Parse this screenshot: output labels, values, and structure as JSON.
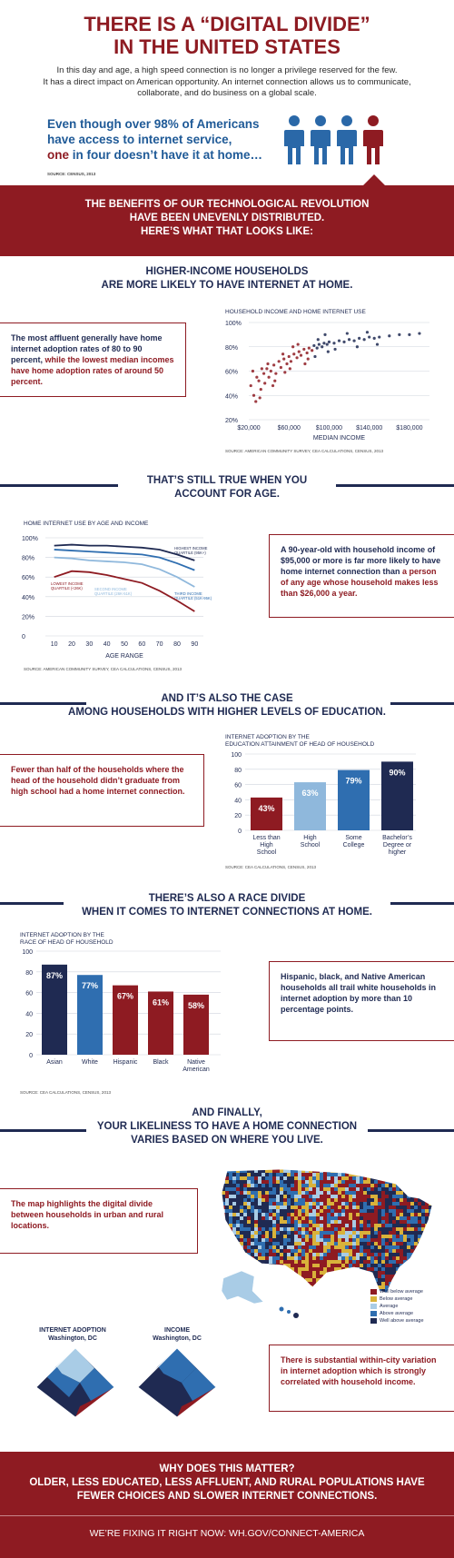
{
  "header": {
    "title_line1": "THERE IS A “DIGITAL DIVIDE”",
    "title_line2": "IN THE UNITED STATES",
    "intro_line1": "In this day and age, a high speed connection is no longer a privilege reserved for the few.",
    "intro_line2": "It has a direct impact on American opportunity. An internet connection allows us to communicate,",
    "intro_line3": "collaborate, and do business on a global scale.",
    "lead_line1": "Even though over 98% of Americans",
    "lead_line2": "have access to internet service,",
    "lead_line3a": "one",
    "lead_line3b": " in four doesn’t have it at home…",
    "source": "SOURCE: CENSUS, 2013",
    "person_colors": [
      "#2a68a8",
      "#2a68a8",
      "#2a68a8",
      "#8e1b22"
    ]
  },
  "banner": {
    "line1": "THE BENEFITS OF OUR TECHNOLOGICAL REVOLUTION",
    "line2": "HAVE BEEN UNEVENLY DISTRIBUTED.",
    "line3": "HERE’S WHAT THAT LOOKS LIKE:"
  },
  "income_section": {
    "heading_pre": "HIGHER-",
    "heading_bold": "INCOME",
    "heading_post": " HOUSEHOLDS",
    "heading_line2": "ARE MORE LIKELY TO HAVE INTERNET AT HOME.",
    "callout_a": "The most affluent generally have home internet adoption rates of 80 to 90 percent,",
    "callout_b": " while the lowest median incomes have home adoption rates of around 50 percent.",
    "chart_title": "HOUSEHOLD INCOME AND HOME INTERNET USE",
    "xlabel": "MEDIAN INCOME",
    "source": "SOURCE: AMERICAN COMMUNITY SURVEY, CEA CALCULATIONS, CENSUS, 2013"
  },
  "age_section": {
    "heading_line1": "THAT’S STILL TRUE WHEN YOU",
    "heading_pre": "ACCOUNT FOR ",
    "heading_bold": "AGE",
    "heading_post": ".",
    "chart_title": "HOME INTERNET USE BY AGE AND INCOME",
    "xlabel": "AGE RANGE",
    "callout_a": "A 90-year-old with household income of $95,000 or more is far more likely to have home internet connection than ",
    "callout_b": "a person of any age whose household makes less than $26,000 a year.",
    "source": "SOURCE: AMERICAN COMMUNITY SURVEY, CEA CALCULATIONS, CENSUS, 2013"
  },
  "education_section": {
    "heading_line1": "AND IT’S ALSO THE CASE",
    "heading_pre": "AMONG HOUSEHOLDS WITH HIGHER LEVELS OF ",
    "heading_bold": "EDUCATION",
    "heading_post": ".",
    "callout": "Fewer than half of the households where the head of the household didn’t graduate from high school had a home internet connection.",
    "chart_title_line1": "INTERNET ADOPTION BY THE",
    "chart_title_line2": "EDUCATION ATTAINMENT OF HEAD OF HOUSEHOLD",
    "source": "SOURCE: CEA CALCULATIONS, CENSUS, 2013"
  },
  "race_section": {
    "heading_pre": "THERE’S ALSO A ",
    "heading_bold": "RACE",
    "heading_post": " DIVIDE",
    "heading_line2": "WHEN IT COMES TO INTERNET CONNECTIONS AT HOME.",
    "chart_title_line1": "INTERNET ADOPTION BY THE",
    "chart_title_line2": "RACE OF HEAD OF HOUSEHOLD",
    "callout": "Hispanic, black, and Native American households all trail white households in internet adoption by more than 10 percentage points.",
    "source": "SOURCE: CEA CALCULATIONS, CENSUS, 2013"
  },
  "location_section": {
    "heading_line1": "AND FINALLY,",
    "heading_line2": "YOUR LIKELINESS TO HAVE A HOME CONNECTION",
    "heading_pre": "VARIES BASED ON ",
    "heading_bold": "WHERE YOU LIVE",
    "heading_post": ".",
    "callout_map": "The map highlights the digital divide between households in urban and rural locations.",
    "legend": [
      {
        "label": "Well below average",
        "color": "#8e1b22"
      },
      {
        "label": "Below average",
        "color": "#d9b23a"
      },
      {
        "label": "Average",
        "color": "#a9cce6"
      },
      {
        "label": "Above average",
        "color": "#2f6eb0"
      },
      {
        "label": "Well above average",
        "color": "#1f2a52"
      }
    ],
    "dc_map1_title": "INTERNET ADOPTION",
    "dc_map1_sub": "Washington, DC",
    "dc_map2_title": "INCOME",
    "dc_map2_sub": "Washington, DC",
    "callout_dc": "There is substantial within-city variation in internet adoption which is strongly correlated with household income."
  },
  "footer": {
    "line1": "WHY DOES THIS MATTER?",
    "line2": "OLDER, LESS EDUCATED, LESS AFFLUENT, AND RURAL POPULATIONS HAVE",
    "line3": "FEWER CHOICES AND SLOWER INTERNET CONNECTIONS.",
    "cta": "WE’RE FIXING IT RIGHT NOW: WH.GOV/CONNECT-AMERICA"
  },
  "chart_data": [
    {
      "type": "scatter",
      "title": "HOUSEHOLD INCOME AND HOME INTERNET USE",
      "xlabel": "MEDIAN INCOME",
      "ylabel": "",
      "x_ticks": [
        "$20,000",
        "$60,000",
        "$100,000",
        "$140,000",
        "$180,000"
      ],
      "y_ticks": [
        "20%",
        "40%",
        "60%",
        "80%",
        "100%"
      ],
      "xlim": [
        20000,
        200000
      ],
      "ylim": [
        20,
        100
      ],
      "points": [
        [
          22000,
          48
        ],
        [
          25000,
          40
        ],
        [
          28000,
          55
        ],
        [
          30000,
          52
        ],
        [
          32000,
          45
        ],
        [
          35000,
          58
        ],
        [
          36000,
          50
        ],
        [
          38000,
          62
        ],
        [
          40000,
          55
        ],
        [
          42000,
          60
        ],
        [
          45000,
          65
        ],
        [
          47000,
          58
        ],
        [
          50000,
          68
        ],
        [
          52000,
          63
        ],
        [
          55000,
          70
        ],
        [
          58000,
          66
        ],
        [
          60000,
          72
        ],
        [
          62000,
          68
        ],
        [
          65000,
          74
        ],
        [
          68000,
          71
        ],
        [
          70000,
          76
        ],
        [
          72000,
          73
        ],
        [
          75000,
          78
        ],
        [
          78000,
          75
        ],
        [
          80000,
          79
        ],
        [
          83000,
          77
        ],
        [
          85000,
          81
        ],
        [
          88000,
          79
        ],
        [
          90000,
          82
        ],
        [
          93000,
          80
        ],
        [
          95000,
          83
        ],
        [
          98000,
          82
        ],
        [
          100000,
          84
        ],
        [
          105000,
          83
        ],
        [
          110000,
          85
        ],
        [
          115000,
          84
        ],
        [
          120000,
          86
        ],
        [
          125000,
          85
        ],
        [
          130000,
          87
        ],
        [
          135000,
          86
        ],
        [
          140000,
          88
        ],
        [
          145000,
          87
        ],
        [
          150000,
          88
        ],
        [
          160000,
          89
        ],
        [
          170000,
          90
        ],
        [
          180000,
          90
        ],
        [
          190000,
          91
        ],
        [
          27000,
          35
        ],
        [
          33000,
          62
        ],
        [
          44000,
          48
        ],
        [
          56000,
          59
        ],
        [
          64000,
          80
        ],
        [
          76000,
          66
        ],
        [
          86000,
          72
        ],
        [
          96000,
          90
        ],
        [
          106000,
          78
        ],
        [
          118000,
          91
        ],
        [
          128000,
          80
        ],
        [
          138000,
          92
        ],
        [
          148000,
          82
        ],
        [
          24000,
          60
        ],
        [
          31000,
          38
        ],
        [
          39000,
          66
        ],
        [
          46000,
          52
        ],
        [
          54000,
          74
        ],
        [
          61000,
          62
        ],
        [
          69000,
          82
        ],
        [
          79000,
          70
        ],
        [
          89000,
          86
        ],
        [
          99000,
          76
        ]
      ],
      "colors": [
        "#8e1b22",
        "#1f2a52"
      ]
    },
    {
      "type": "line",
      "title": "HOME INTERNET USE BY AGE AND INCOME",
      "xlabel": "AGE RANGE",
      "x": [
        10,
        20,
        30,
        40,
        50,
        60,
        70,
        80,
        90
      ],
      "y_ticks": [
        "0",
        "20%",
        "40%",
        "60%",
        "80%",
        "100%"
      ],
      "x_ticks": [
        "10",
        "20",
        "30",
        "40",
        "50",
        "60",
        "70",
        "80",
        "90"
      ],
      "ylim": [
        0,
        100
      ],
      "series": [
        {
          "name": "HIGHEST INCOME QUARTILE (95K+)",
          "color": "#1f2a52",
          "values": [
            92,
            93,
            92,
            92,
            91,
            90,
            88,
            83,
            77
          ]
        },
        {
          "name": "THIRD INCOME QUARTILE (51K-95K)",
          "color": "#2f6eb0",
          "values": [
            88,
            87,
            86,
            85,
            84,
            83,
            80,
            74,
            67
          ]
        },
        {
          "name": "SECOND INCOME QUARTILE (26K-51K)",
          "color": "#8fb8dc",
          "values": [
            80,
            79,
            77,
            76,
            75,
            73,
            68,
            60,
            50
          ]
        },
        {
          "name": "LOWEST INCOME QUARTILE (<26K)",
          "color": "#8e1b22",
          "values": [
            60,
            66,
            65,
            62,
            58,
            54,
            46,
            36,
            25
          ]
        }
      ]
    },
    {
      "type": "bar",
      "title": "INTERNET ADOPTION BY THE EDUCATION ATTAINMENT OF HEAD OF HOUSEHOLD",
      "categories": [
        "Less than High School",
        "High School",
        "Some College",
        "Bachelor’s Degree or higher"
      ],
      "values": [
        43,
        63,
        79,
        90
      ],
      "labels": [
        "43%",
        "63%",
        "79%",
        "90%"
      ],
      "colors": [
        "#8e1b22",
        "#8fb8dc",
        "#2f6eb0",
        "#1f2a52"
      ],
      "y_ticks": [
        "0",
        "20",
        "40",
        "60",
        "80",
        "100"
      ],
      "ylim": [
        0,
        100
      ]
    },
    {
      "type": "bar",
      "title": "INTERNET ADOPTION BY THE RACE OF HEAD OF HOUSEHOLD",
      "categories": [
        "Asian",
        "White",
        "Hispanic",
        "Black",
        "Native American"
      ],
      "values": [
        87,
        77,
        67,
        61,
        58
      ],
      "labels": [
        "87%",
        "77%",
        "67%",
        "61%",
        "58%"
      ],
      "colors": [
        "#1f2a52",
        "#2f6eb0",
        "#8e1b22",
        "#8e1b22",
        "#8e1b22"
      ],
      "y_ticks": [
        "0",
        "20",
        "40",
        "60",
        "80",
        "100"
      ],
      "ylim": [
        0,
        100
      ]
    }
  ]
}
